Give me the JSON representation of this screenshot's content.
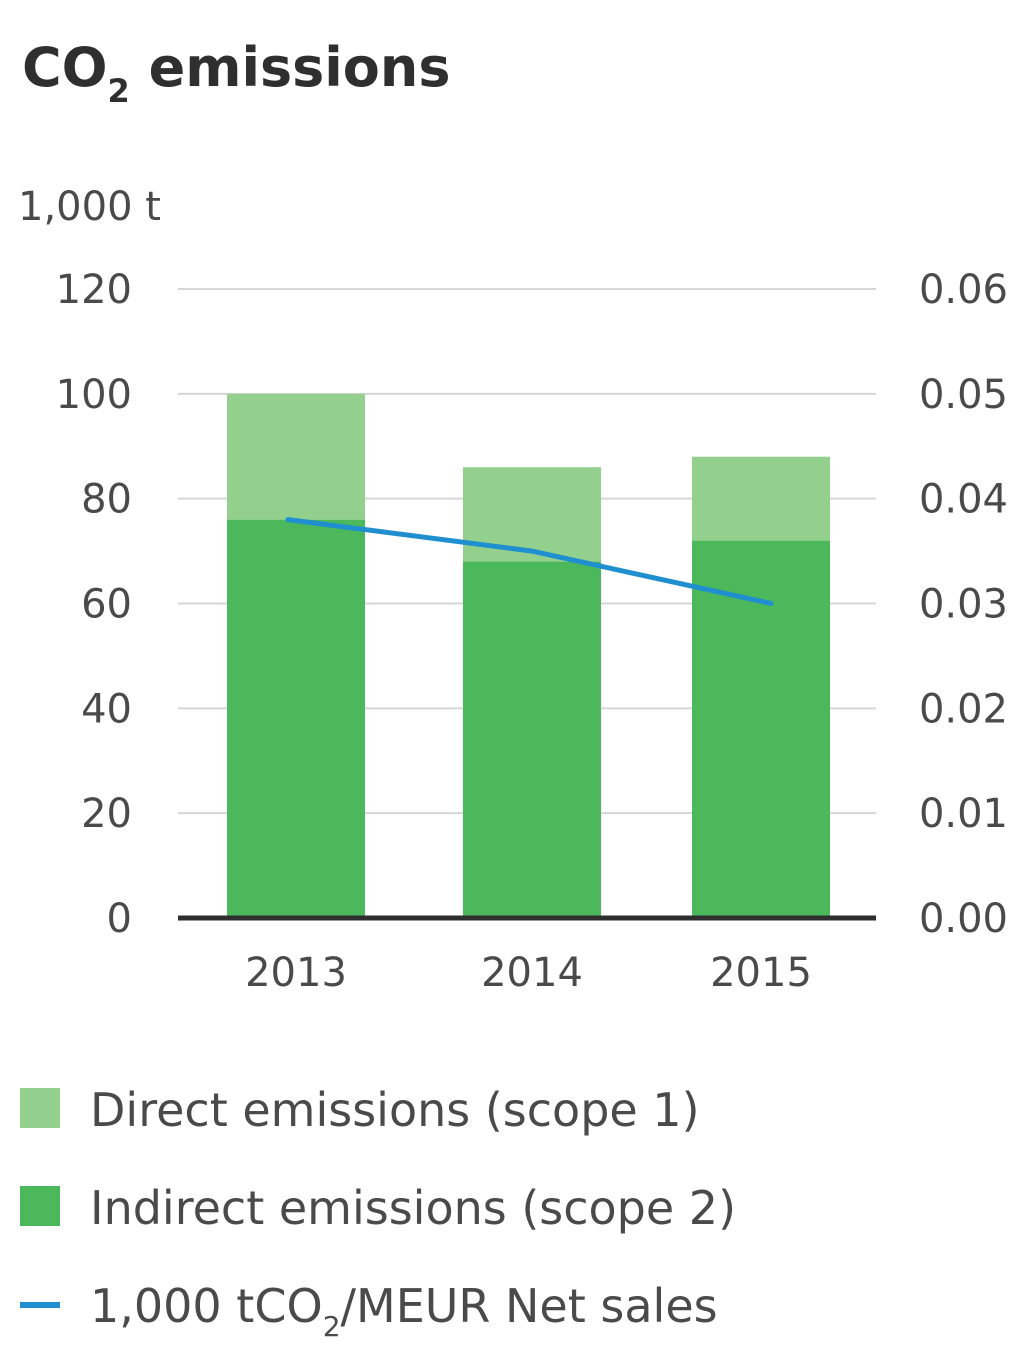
{
  "chart_data": {
    "type": "bar",
    "title": {
      "main": "CO",
      "sub": "2",
      "rest": " emissions"
    },
    "ylabel": "1,000 t",
    "categories": [
      "2013",
      "2014",
      "2015"
    ],
    "ylim": [
      0,
      120
    ],
    "y_ticks": [
      "0",
      "20",
      "40",
      "60",
      "80",
      "100",
      "120"
    ],
    "y2lim": [
      0,
      0.06
    ],
    "y2_ticks": [
      "0.00",
      "0.01",
      "0.02",
      "0.03",
      "0.04",
      "0.05",
      "0.06"
    ],
    "stacked": true,
    "series": [
      {
        "name": "Indirect emissions (scope 2)",
        "values": [
          76,
          68,
          72
        ],
        "color": "#4cb85c",
        "kind": "bar"
      },
      {
        "name": "Direct emissions (scope 1)",
        "values": [
          24,
          18,
          16
        ],
        "color": "#93cf8d",
        "kind": "bar"
      },
      {
        "name": "1,000 tCO2/MEUR Net sales",
        "values": [
          0.038,
          0.035,
          0.03
        ],
        "color": "#1f8fd0",
        "kind": "line",
        "axis": "right"
      }
    ],
    "legend": {
      "position": "bottom",
      "items": [
        {
          "label": "Direct emissions (scope 1)",
          "color": "#93cf8d",
          "marker": "square"
        },
        {
          "label": "Indirect emissions (scope 2)",
          "color": "#4cb85c",
          "marker": "square"
        },
        {
          "label_parts": {
            "main": "1,000 tCO",
            "sub": "2",
            "rest": "/MEUR Net sales"
          },
          "color": "#1f8fd0",
          "marker": "line"
        }
      ]
    },
    "grid": true
  }
}
